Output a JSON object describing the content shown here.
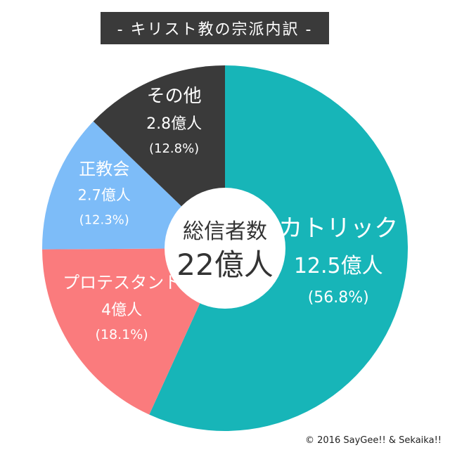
{
  "title": "- キリスト教の宗派内訳 -",
  "copyright": "© 2016 SayGee!! & Sekaika!!",
  "colors": {
    "catholic": "#17b5b8",
    "protestant": "#fa7b7d",
    "orthodox": "#7dbcf8",
    "other": "#3a3a3a",
    "center": "#ffffff"
  },
  "chart_data": {
    "type": "pie",
    "title": "- キリスト教の宗派内訳 -",
    "total_label": "総信者数",
    "total_value": "22億人",
    "categories": [
      "カトリック",
      "プロテスタント",
      "正教会",
      "その他"
    ],
    "values": [
      12.5,
      4,
      2.7,
      2.8
    ],
    "percents": [
      56.8,
      18.1,
      12.3,
      12.8
    ],
    "value_labels": [
      "12.5億人",
      "4億人",
      "2.7億人",
      "2.8億人"
    ],
    "percent_labels": [
      "(56.8%)",
      "(18.1%)",
      "(12.3%)",
      "(12.8%)"
    ],
    "unit": "億人",
    "legend": "none",
    "start": "top",
    "direction": "clockwise"
  }
}
